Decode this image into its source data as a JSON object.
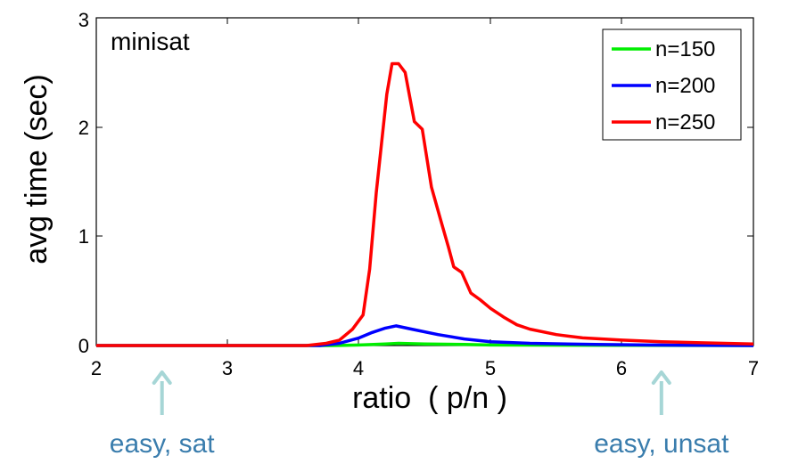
{
  "chart_data": {
    "type": "line",
    "title": "minisat",
    "xlabel": "ratio  ( p/n )",
    "ylabel": "avg time (sec)",
    "xlim": [
      2,
      7
    ],
    "ylim": [
      0,
      3
    ],
    "xticks": [
      "2",
      "3",
      "4",
      "5",
      "6",
      "7"
    ],
    "yticks": [
      "0",
      "1",
      "2",
      "3"
    ],
    "grid": false,
    "legend_position": "top-right",
    "series": [
      {
        "name": "n=150",
        "color": "#00ee00",
        "points": [
          [
            2.0,
            0
          ],
          [
            3.0,
            0
          ],
          [
            3.8,
            0
          ],
          [
            4.0,
            0.005
          ],
          [
            4.2,
            0.015
          ],
          [
            4.3,
            0.02
          ],
          [
            4.5,
            0.015
          ],
          [
            4.8,
            0.01
          ],
          [
            5.0,
            0.005
          ],
          [
            6.0,
            0.002
          ],
          [
            7.0,
            0
          ]
        ]
      },
      {
        "name": "n=200",
        "color": "#0000ff",
        "points": [
          [
            2.0,
            0
          ],
          [
            3.0,
            0
          ],
          [
            3.7,
            0
          ],
          [
            3.85,
            0.02
          ],
          [
            4.0,
            0.07
          ],
          [
            4.1,
            0.12
          ],
          [
            4.2,
            0.16
          ],
          [
            4.28,
            0.18
          ],
          [
            4.4,
            0.15
          ],
          [
            4.6,
            0.1
          ],
          [
            4.8,
            0.06
          ],
          [
            5.0,
            0.035
          ],
          [
            5.3,
            0.02
          ],
          [
            5.8,
            0.01
          ],
          [
            6.2,
            0.005
          ],
          [
            7.0,
            0
          ]
        ]
      },
      {
        "name": "n=250",
        "color": "#ff0000",
        "points": [
          [
            2.0,
            0
          ],
          [
            3.0,
            0
          ],
          [
            3.6,
            0
          ],
          [
            3.75,
            0.02
          ],
          [
            3.85,
            0.05
          ],
          [
            3.95,
            0.15
          ],
          [
            4.03,
            0.28
          ],
          [
            4.08,
            0.7
          ],
          [
            4.13,
            1.4
          ],
          [
            4.17,
            1.85
          ],
          [
            4.21,
            2.3
          ],
          [
            4.25,
            2.58
          ],
          [
            4.3,
            2.58
          ],
          [
            4.35,
            2.5
          ],
          [
            4.42,
            2.05
          ],
          [
            4.48,
            1.98
          ],
          [
            4.55,
            1.45
          ],
          [
            4.62,
            1.15
          ],
          [
            4.68,
            0.9
          ],
          [
            4.72,
            0.72
          ],
          [
            4.78,
            0.67
          ],
          [
            4.85,
            0.48
          ],
          [
            4.92,
            0.42
          ],
          [
            5.0,
            0.34
          ],
          [
            5.1,
            0.26
          ],
          [
            5.2,
            0.19
          ],
          [
            5.3,
            0.15
          ],
          [
            5.5,
            0.1
          ],
          [
            5.7,
            0.07
          ],
          [
            6.0,
            0.05
          ],
          [
            6.3,
            0.035
          ],
          [
            6.6,
            0.025
          ],
          [
            7.0,
            0.015
          ]
        ]
      }
    ],
    "annotations": [
      {
        "text": "easy, sat",
        "x": 2.5
      },
      {
        "text": "easy, unsat",
        "x": 6.3
      }
    ]
  }
}
